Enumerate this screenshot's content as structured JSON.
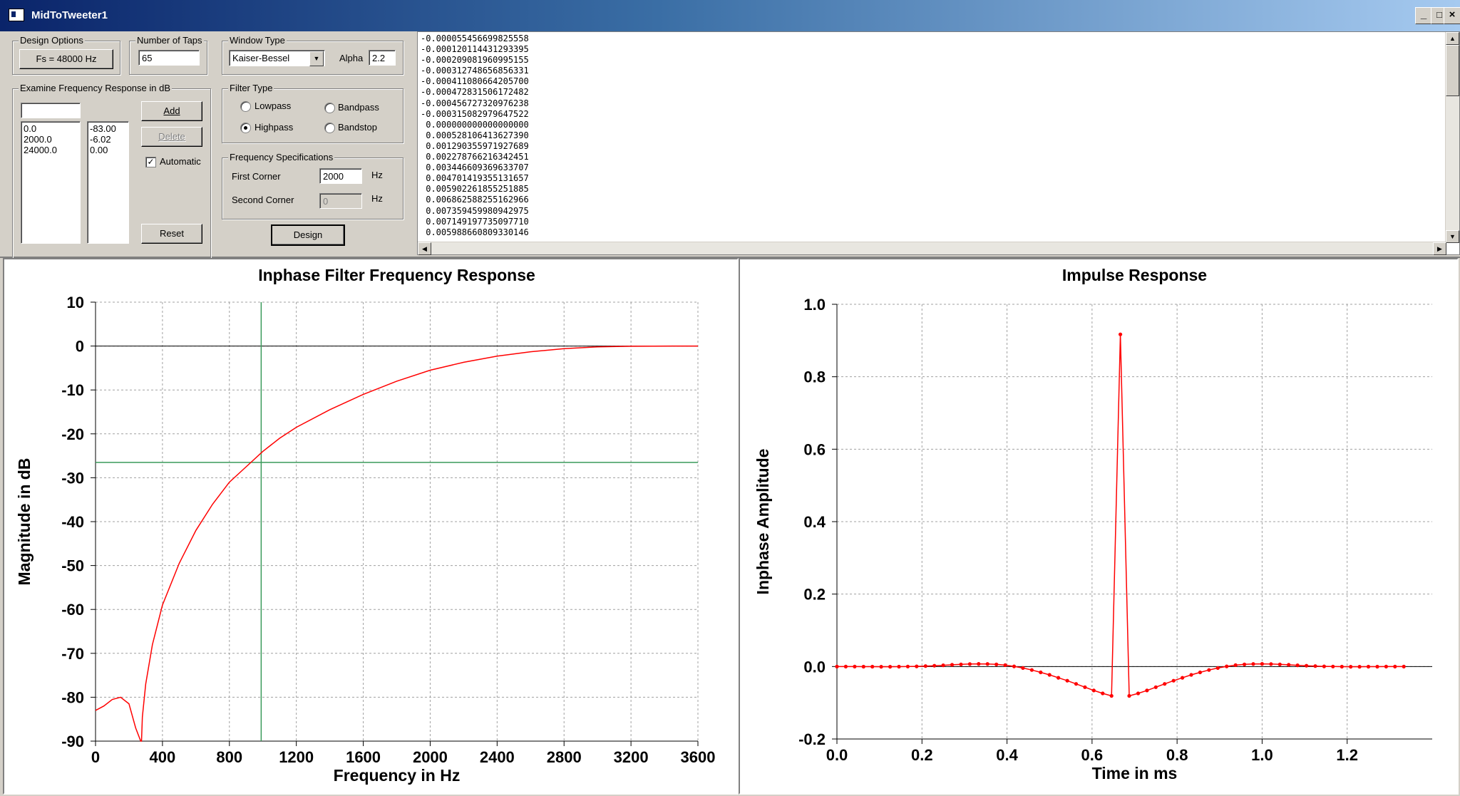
{
  "window": {
    "title": "MidToTweeter1",
    "minimize_glyph": "_",
    "maximize_glyph": "□",
    "close_glyph": "×"
  },
  "design_options": {
    "group": "Design Options",
    "fs_button": "Fs = 48000 Hz"
  },
  "taps": {
    "group": "Number of Taps",
    "value": "65"
  },
  "window_type": {
    "group": "Window Type",
    "selected": "Kaiser-Bessel",
    "alpha_label": "Alpha",
    "alpha_value": "2.2"
  },
  "examine": {
    "group": "Examine Frequency Response in dB",
    "input_value": "",
    "frequencies": [
      "0.0",
      "2000.0",
      "24000.0"
    ],
    "magnitudes": [
      "-83.00",
      "-6.02",
      "0.00"
    ],
    "add": "Add",
    "delete": "Delete",
    "automatic": "Automatic",
    "automatic_checked": true,
    "reset": "Reset"
  },
  "filter_type": {
    "group": "Filter Type",
    "lowpass": "Lowpass",
    "bandpass": "Bandpass",
    "highpass": "Highpass",
    "bandstop": "Bandstop",
    "selected": "Highpass"
  },
  "freq_spec": {
    "group": "Frequency Specifications",
    "first_label": "First Corner",
    "first_value": "2000",
    "first_unit": "Hz",
    "second_label": "Second Corner",
    "second_value": "0",
    "second_unit": "Hz"
  },
  "design_button": "Design",
  "coefficients": [
    "-0.000055456699825558",
    "-0.000120114431293395",
    "-0.000209081960995155",
    "-0.000312748656856331",
    "-0.000411080664205700",
    "-0.000472831506172482",
    "-0.000456727320976238",
    "-0.000315082979647522",
    " 0.000000000000000000",
    " 0.000528106413627390",
    " 0.001290355971927689",
    " 0.002278766216342451",
    " 0.003446609369633707",
    " 0.004701419355131657",
    " 0.005902261855251885",
    " 0.006862588255162966",
    " 0.007359459980942975",
    " 0.007149197735097710",
    " 0.005988660809330146"
  ],
  "chart_data": [
    {
      "type": "line",
      "title": "Inphase Filter Frequency Response",
      "xlabel": "Frequency in Hz",
      "ylabel": "Magnitude in dB",
      "xlim": [
        0,
        3600
      ],
      "ylim": [
        -90,
        10
      ],
      "xticks": [
        0,
        400,
        800,
        1200,
        1600,
        2000,
        2400,
        2800,
        3200,
        3600
      ],
      "yticks": [
        10,
        0,
        -10,
        -20,
        -30,
        -40,
        -50,
        -60,
        -70,
        -80,
        -90
      ],
      "grid": true,
      "cursor": {
        "x": 990,
        "y": -26.5
      },
      "series": [
        {
          "color": "#ff0000",
          "x": [
            0,
            50,
            100,
            150,
            200,
            240,
            270,
            275,
            280,
            300,
            340,
            400,
            500,
            600,
            700,
            800,
            900,
            1000,
            1100,
            1200,
            1400,
            1600,
            1800,
            2000,
            2200,
            2400,
            2600,
            2800,
            3000,
            3200,
            3450
          ],
          "y": [
            -83,
            -82,
            -80.5,
            -80,
            -81.5,
            -87,
            -90,
            -90,
            -84.5,
            -77,
            -68,
            -59,
            -49.5,
            -42,
            -36,
            -31,
            -27.5,
            -24,
            -21,
            -18.5,
            -14.5,
            -11,
            -8,
            -5.5,
            -3.7,
            -2.3,
            -1.3,
            -0.6,
            -0.2,
            -0.05,
            0
          ]
        }
      ]
    },
    {
      "type": "line",
      "title": "Impulse Response",
      "xlabel": "Time in ms",
      "ylabel": "Inphase Amplitude",
      "xlim": [
        0,
        1.4
      ],
      "ylim": [
        -0.2,
        1.0
      ],
      "xticks": [
        0.0,
        0.2,
        0.4,
        0.6,
        0.8,
        1.0,
        1.2
      ],
      "yticks": [
        1.0,
        0.8,
        0.6,
        0.4,
        0.2,
        0.0,
        -0.2
      ],
      "grid": true,
      "series": [
        {
          "color": "#ff0000",
          "markers": true,
          "x_step_ms": 0.0208333,
          "values": [
            -0.0001,
            -0.0001,
            -0.0002,
            -0.0003,
            -0.0004,
            -0.0005,
            -0.0005,
            -0.0003,
            0,
            0.0005,
            0.0013,
            0.0023,
            0.0034,
            0.0047,
            0.0059,
            0.0069,
            0.0074,
            0.0071,
            0.006,
            0.0038,
            0.0005,
            -0.004,
            -0.0095,
            -0.016,
            -0.023,
            -0.031,
            -0.039,
            -0.048,
            -0.057,
            -0.066,
            -0.074,
            -0.081,
            0.917,
            -0.081,
            -0.074,
            -0.066,
            -0.057,
            -0.048,
            -0.039,
            -0.031,
            -0.023,
            -0.016,
            -0.0095,
            -0.004,
            0.0005,
            0.0038,
            0.006,
            0.0071,
            0.0074,
            0.0069,
            0.0059,
            0.0047,
            0.0034,
            0.0023,
            0.0013,
            0.0005,
            0,
            -0.0003,
            -0.0005,
            -0.0005,
            -0.0004,
            -0.0003,
            -0.0002,
            -0.0001,
            -0.0001
          ]
        }
      ]
    }
  ]
}
